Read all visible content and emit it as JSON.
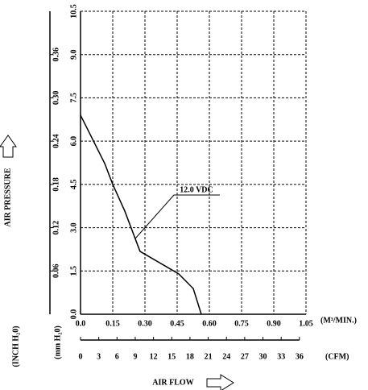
{
  "chart_data": {
    "type": "line",
    "x": [
      0,
      0.113,
      0.15,
      0.206,
      0.277,
      0.457,
      0.525,
      0.5625
    ],
    "series": [
      {
        "name": "12.0 VDC",
        "color": "#000000",
        "values": [
          6.9,
          5.22,
          4.5,
          3.58,
          2.18,
          1.4,
          0.89,
          0
        ]
      }
    ],
    "xlim": [
      0,
      1.05
    ],
    "xticks": [
      {
        "value": 0,
        "label": "0.0"
      },
      0.15,
      {
        "value": 0.3,
        "label": "0.30"
      },
      0.45,
      {
        "value": 0.6,
        "label": "0.60"
      },
      0.75,
      {
        "value": 0.9,
        "label": "0.90"
      },
      1.05
    ],
    "ylim": [
      0,
      10.5
    ],
    "yticks": [
      {
        "value": 0,
        "label": "0.0"
      },
      1.5,
      {
        "value": 3,
        "label": "3.0"
      },
      4.5,
      {
        "value": 6,
        "label": "6.0"
      },
      7.5,
      {
        "value": 9,
        "label": "9.0"
      },
      10.5
    ],
    "y2lim": [
      0,
      0.42
    ],
    "y2ticks": [
      0.06,
      0.12,
      0.18,
      0.24,
      {
        "value": 0.3,
        "label": "0.30"
      },
      0.36
    ],
    "x2lim": [
      0,
      37.08
    ],
    "x2ticks": [
      0,
      3,
      6,
      9,
      12,
      15,
      18,
      21,
      24,
      27,
      30,
      33,
      36
    ],
    "xlabel": "(M³/MIN.)",
    "x2label": "(CFM)",
    "ylabel": "(mm H₂0)",
    "y2label": "(INCH H₂0)",
    "title_x": "AIR FLOW",
    "title_y": "AIR PRESSURE",
    "grid": true
  }
}
